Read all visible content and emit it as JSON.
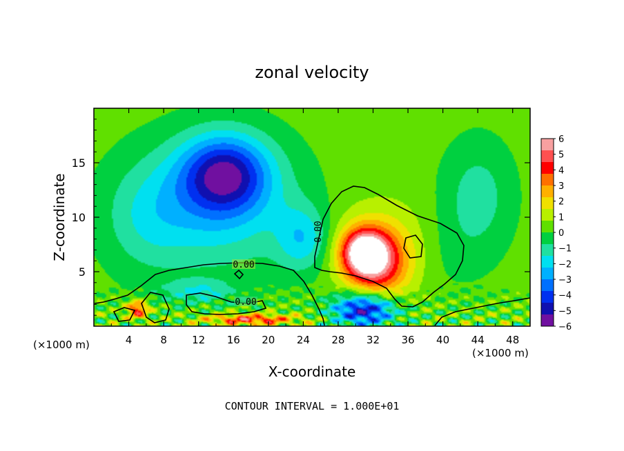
{
  "chart_data": {
    "type": "heatmap",
    "title": "zonal velocity",
    "xlabel": "X-coordinate",
    "ylabel": "Z-coordinate",
    "x_unit": "(×1000 m)",
    "z_unit": "(×1000 m)",
    "xlim": [
      0,
      50
    ],
    "ylim": [
      0,
      20
    ],
    "x_ticks": [
      4,
      8,
      12,
      16,
      20,
      24,
      28,
      32,
      36,
      40,
      44,
      48
    ],
    "x_tick_labels": [
      "4",
      "8",
      "12",
      "16",
      "20",
      "24",
      "28",
      "32",
      "36",
      "40",
      "44",
      "48"
    ],
    "y_ticks": [
      5,
      10,
      15
    ],
    "y_tick_labels": [
      "5",
      "10",
      "15"
    ],
    "colorbar": {
      "min": -6,
      "max": 6,
      "tick_labels": [
        "6",
        "5",
        "4",
        "3",
        "2",
        "1",
        "0",
        "−1",
        "−2",
        "−3",
        "−4",
        "−5",
        "−6"
      ],
      "colors": [
        "#f8a0a0",
        "#ff5050",
        "#ff0000",
        "#ff7000",
        "#ffb000",
        "#f0e000",
        "#b8f000",
        "#60e000",
        "#00d040",
        "#20e0a0",
        "#00e0f0",
        "#00b0ff",
        "#0070ff",
        "#0030f0",
        "#1010b0",
        "#7010a0"
      ]
    },
    "contour_label": "0.00",
    "annotation": "CONTOUR INTERVAL = 1.000E+01",
    "field_features": [
      {
        "name": "background",
        "x": 25,
        "z": 10,
        "value": 0.3,
        "sx": 40,
        "sz": 40
      },
      {
        "name": "upper-negative-core",
        "x": 15,
        "z": 14,
        "value": -4.5,
        "sx": 5,
        "sz": 3.5
      },
      {
        "name": "upper-negative-broad",
        "x": 14,
        "z": 11,
        "value": -2.3,
        "sx": 9,
        "sz": 6
      },
      {
        "name": "left-negative-band",
        "x": 6,
        "z": 10,
        "value": -1.2,
        "sx": 5,
        "sz": 5
      },
      {
        "name": "neck-negative",
        "x": 24,
        "z": 8,
        "value": -2.2,
        "sx": 3,
        "sz": 3
      },
      {
        "name": "positive-core",
        "x": 31,
        "z": 6.8,
        "value": 5.5,
        "sx": 2.5,
        "sz": 2
      },
      {
        "name": "positive-lobe",
        "x": 32.5,
        "z": 5.5,
        "value": 3.5,
        "sx": 3.5,
        "sz": 3
      },
      {
        "name": "positive-broad",
        "x": 33,
        "z": 7.5,
        "value": 1.5,
        "sx": 6,
        "sz": 4
      },
      {
        "name": "low-negative-core",
        "x": 31,
        "z": 1.5,
        "value": -5.5,
        "sx": 3.5,
        "sz": 1.5
      },
      {
        "name": "right-negative",
        "x": 40,
        "z": 7,
        "value": -0.6,
        "sx": 5,
        "sz": 4
      },
      {
        "name": "far-right-negative",
        "x": 44,
        "z": 12,
        "value": -1.4,
        "sx": 4,
        "sz": 5
      },
      {
        "name": "low-left-positive",
        "x": 5,
        "z": 1.5,
        "value": 4,
        "sx": 1.2,
        "sz": 0.8
      },
      {
        "name": "low-band-positive",
        "x": 18,
        "z": 0.6,
        "value": 4,
        "sx": 5,
        "sz": 0.5
      },
      {
        "name": "mid-left-negative",
        "x": 12,
        "z": 3.2,
        "value": -1.6,
        "sx": 4,
        "sz": 1
      }
    ]
  }
}
